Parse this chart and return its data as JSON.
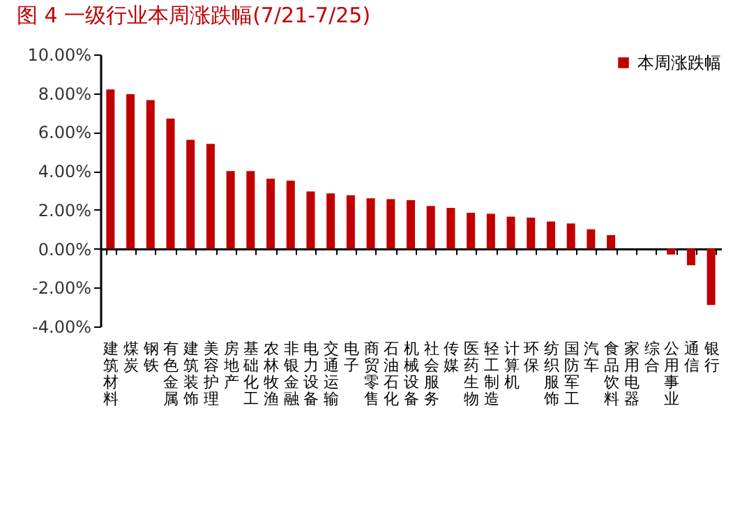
{
  "chart_data": {
    "type": "bar",
    "title": "图 4 一级行业本周涨跌幅(7/21-7/25)",
    "categories": [
      "建筑材料",
      "煤炭",
      "钢铁",
      "有色金属",
      "建筑装饰",
      "美容护理",
      "房地产",
      "基础化工",
      "农林牧渔",
      "非银金融",
      "电力设备",
      "交通运输",
      "电子",
      "商贸零售",
      "石油石化",
      "机械设备",
      "社会服务",
      "传媒",
      "医药生物",
      "轻工制造",
      "计算机",
      "环保",
      "纺织服饰",
      "国防军工",
      "汽车",
      "食品饮料",
      "家用电器",
      "综合",
      "公用事业",
      "通信",
      "银行"
    ],
    "series": [
      {
        "name": "本周涨跌幅",
        "color": "#c00000",
        "values": [
          8.2,
          7.95,
          7.65,
          6.7,
          5.6,
          5.4,
          4.0,
          4.0,
          3.6,
          3.5,
          2.95,
          2.85,
          2.75,
          2.6,
          2.55,
          2.5,
          2.2,
          2.1,
          1.85,
          1.8,
          1.65,
          1.6,
          1.4,
          1.3,
          1.0,
          0.7,
          0,
          0,
          -0.3,
          -0.85,
          -2.9
        ]
      }
    ],
    "ylim": [
      -4,
      10
    ],
    "yticks": [
      {
        "value": -4,
        "label": "-4.00%"
      },
      {
        "value": -2,
        "label": "-2.00%"
      },
      {
        "value": 0,
        "label": "0.00%"
      },
      {
        "value": 2,
        "label": "2.00%"
      },
      {
        "value": 4,
        "label": "4.00%"
      },
      {
        "value": 6,
        "label": "6.00%"
      },
      {
        "value": 8,
        "label": "8.00%"
      },
      {
        "value": 10,
        "label": "10.00%"
      }
    ],
    "legend": "top right"
  }
}
